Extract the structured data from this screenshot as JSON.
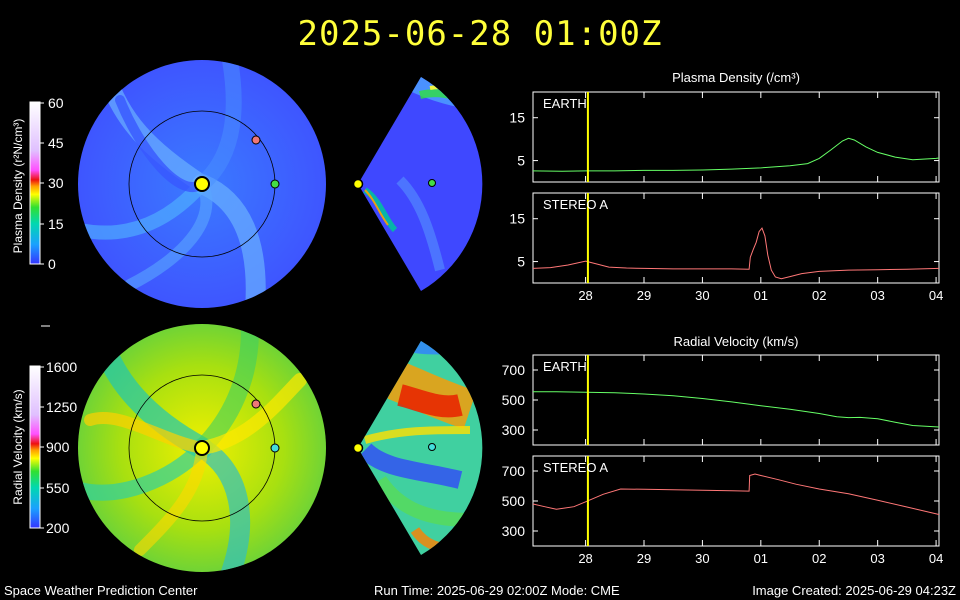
{
  "timestamp": "2025-06-28  01:00Z",
  "footer": {
    "left": "Space Weather Prediction Center",
    "middle": "Run Time: 2025-06-29 02:00Z  Mode: CME",
    "right": "Image Created: 2025-06-29 04:23Z"
  },
  "colorbars": [
    {
      "label": "Plasma Density (r²N/cm³)",
      "ticks": [
        "60",
        "45",
        "30",
        "15",
        "0"
      ],
      "range": [
        0,
        60
      ]
    },
    {
      "label": "Radial Velocity (km/s)",
      "ticks": [
        "1600",
        "1250",
        "900",
        "550",
        "200"
      ],
      "range": [
        200,
        1600
      ]
    }
  ],
  "colors": {
    "earth_marker": "#44dd44",
    "stereo_marker": "#ee7777",
    "sun": "#ffff00",
    "earth_line": "#66ff66",
    "stereo_line": "#ff7777",
    "time_marker": "#ffff00"
  },
  "chart_data": [
    {
      "type": "line",
      "title": "Plasma Density (/cm³)",
      "panel": "EARTH",
      "x_ticks": [
        "28",
        "29",
        "30",
        "01",
        "02",
        "03",
        "04"
      ],
      "x_tick_values": [
        28,
        29,
        30,
        31,
        32,
        33,
        34
      ],
      "xlim": [
        27.1,
        34.05
      ],
      "ylim": [
        0,
        21
      ],
      "y_ticks": [
        "15",
        "5"
      ],
      "y_tick_values": [
        15,
        5
      ],
      "current_time_x": 28.04,
      "series": [
        {
          "x": [
            27.1,
            27.6,
            28.0,
            28.5,
            29.0,
            29.5,
            30.0,
            30.5,
            31.0,
            31.5,
            31.8,
            32.0,
            32.2,
            32.4,
            32.5,
            32.6,
            32.8,
            33.0,
            33.3,
            33.6,
            34.0,
            34.05
          ],
          "y": [
            2.6,
            2.5,
            2.6,
            2.6,
            2.7,
            2.7,
            2.8,
            3.0,
            3.3,
            3.8,
            4.3,
            5.5,
            7.5,
            9.6,
            10.2,
            9.8,
            8.2,
            6.9,
            5.8,
            5.2,
            5.5,
            5.6
          ]
        }
      ]
    },
    {
      "type": "line",
      "panel": "STEREO A",
      "x_ticks": [
        "28",
        "29",
        "30",
        "01",
        "02",
        "03",
        "04"
      ],
      "x_tick_values": [
        28,
        29,
        30,
        31,
        32,
        33,
        34
      ],
      "xlim": [
        27.1,
        34.05
      ],
      "ylim": [
        0,
        21
      ],
      "y_ticks": [
        "15",
        "5"
      ],
      "y_tick_values": [
        15,
        5
      ],
      "current_time_x": 28.04,
      "series": [
        {
          "x": [
            27.1,
            27.4,
            27.7,
            28.0,
            28.2,
            28.4,
            28.7,
            29.0,
            29.5,
            30.0,
            30.5,
            30.8,
            30.82,
            30.87,
            30.92,
            30.97,
            31.02,
            31.07,
            31.12,
            31.18,
            31.25,
            31.35,
            31.5,
            31.7,
            32.0,
            32.5,
            33.0,
            33.5,
            34.05
          ],
          "y": [
            3.4,
            3.6,
            4.2,
            5.1,
            4.4,
            3.7,
            3.5,
            3.4,
            3.3,
            3.3,
            3.3,
            3.2,
            6.0,
            7.8,
            9.5,
            12.0,
            12.8,
            11.0,
            6.5,
            3.0,
            1.4,
            1.0,
            1.5,
            2.2,
            2.7,
            3.0,
            3.1,
            3.2,
            3.4
          ]
        }
      ]
    },
    {
      "type": "line",
      "title": "Radial Velocity (km/s)",
      "panel": "EARTH",
      "x_ticks": [
        "28",
        "29",
        "30",
        "01",
        "02",
        "03",
        "04"
      ],
      "x_tick_values": [
        28,
        29,
        30,
        31,
        32,
        33,
        34
      ],
      "xlim": [
        27.1,
        34.05
      ],
      "ylim": [
        200,
        800
      ],
      "y_ticks": [
        "700",
        "500",
        "300"
      ],
      "y_tick_values": [
        700,
        500,
        300
      ],
      "current_time_x": 28.04,
      "series": [
        {
          "x": [
            27.1,
            27.5,
            28.0,
            28.5,
            29.0,
            29.5,
            30.0,
            30.5,
            31.0,
            31.5,
            32.0,
            32.3,
            32.5,
            32.7,
            33.0,
            33.3,
            33.6,
            34.05
          ],
          "y": [
            555,
            555,
            552,
            548,
            540,
            528,
            510,
            487,
            462,
            438,
            410,
            388,
            383,
            384,
            375,
            352,
            330,
            320
          ]
        }
      ]
    },
    {
      "type": "line",
      "panel": "STEREO A",
      "x_ticks": [
        "28",
        "29",
        "30",
        "01",
        "02",
        "03",
        "04"
      ],
      "x_tick_values": [
        28,
        29,
        30,
        31,
        32,
        33,
        34
      ],
      "xlim": [
        27.1,
        34.05
      ],
      "ylim": [
        200,
        800
      ],
      "y_ticks": [
        "700",
        "500",
        "300"
      ],
      "y_tick_values": [
        700,
        500,
        300
      ],
      "current_time_x": 28.04,
      "series": [
        {
          "x": [
            27.1,
            27.3,
            27.5,
            27.8,
            28.0,
            28.3,
            28.6,
            29.0,
            29.5,
            30.0,
            30.5,
            30.8,
            30.81,
            30.9,
            31.0,
            31.3,
            31.6,
            32.0,
            32.5,
            33.0,
            33.5,
            34.05
          ],
          "y": [
            480,
            462,
            445,
            462,
            495,
            545,
            580,
            578,
            575,
            572,
            568,
            566,
            670,
            680,
            670,
            642,
            612,
            580,
            548,
            505,
            460,
            410
          ]
        }
      ]
    }
  ]
}
